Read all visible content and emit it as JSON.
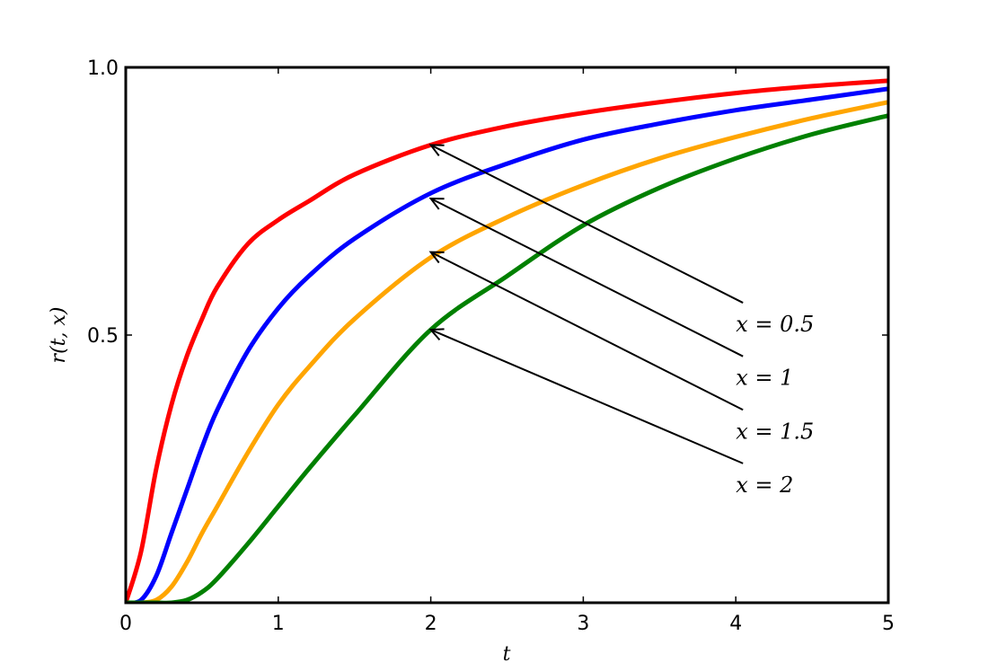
{
  "chart_data": {
    "type": "line",
    "xlabel": "t",
    "ylabel": "r(t, x)",
    "xlim": [
      0,
      5
    ],
    "ylim": [
      0,
      1
    ],
    "xticks": [
      0,
      1,
      2,
      3,
      4,
      5
    ],
    "xtick_labels": [
      "0",
      "1",
      "2",
      "3",
      "4",
      "5"
    ],
    "yticks": [
      0.5,
      1.0
    ],
    "ytick_labels": [
      "0.5",
      "1.0"
    ],
    "grid": false,
    "x": [
      0,
      0.1,
      0.2,
      0.3,
      0.4,
      0.5,
      0.6,
      0.8,
      1.0,
      1.2,
      1.5,
      2.0,
      2.5,
      3.0,
      3.5,
      4.0,
      4.5,
      5.0
    ],
    "series": [
      {
        "color": "#ff0000",
        "values": [
          0,
          0.095,
          0.25,
          0.37,
          0.46,
          0.53,
          0.59,
          0.67,
          0.715,
          0.75,
          0.8,
          0.855,
          0.89,
          0.915,
          0.935,
          0.952,
          0.965,
          0.975
        ]
      },
      {
        "color": "#0000ff",
        "values": [
          0,
          0.005,
          0.05,
          0.13,
          0.21,
          0.29,
          0.36,
          0.47,
          0.55,
          0.61,
          0.68,
          0.765,
          0.82,
          0.865,
          0.895,
          0.92,
          0.94,
          0.96
        ]
      },
      {
        "color": "#ffa500",
        "values": [
          0,
          0.0,
          0.005,
          0.03,
          0.075,
          0.13,
          0.18,
          0.28,
          0.37,
          0.44,
          0.53,
          0.645,
          0.72,
          0.78,
          0.83,
          0.87,
          0.905,
          0.935
        ]
      },
      {
        "color": "#008000",
        "values": [
          0,
          0.0,
          0.0,
          0.0,
          0.005,
          0.02,
          0.045,
          0.11,
          0.18,
          0.25,
          0.35,
          0.51,
          0.61,
          0.705,
          0.775,
          0.83,
          0.875,
          0.91
        ]
      }
    ],
    "annotations": [
      {
        "text": "x = 0.5",
        "point": [
          2.0,
          0.855
        ],
        "text_at": [
          4.0,
          0.52
        ]
      },
      {
        "text": "x = 1",
        "point": [
          2.0,
          0.755
        ],
        "text_at": [
          4.0,
          0.42
        ]
      },
      {
        "text": "x = 1.5",
        "point": [
          2.0,
          0.655
        ],
        "text_at": [
          4.0,
          0.32
        ]
      },
      {
        "text": "x = 2",
        "point": [
          2.0,
          0.51
        ],
        "text_at": [
          4.0,
          0.22
        ]
      }
    ]
  }
}
